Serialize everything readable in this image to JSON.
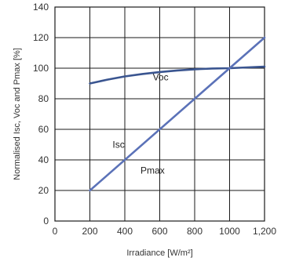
{
  "chart_data": {
    "type": "line",
    "xlabel": "Irradiance [W/m²]",
    "ylabel": "Normalised Isc, Voc and Pmax [%]",
    "xlim": [
      0,
      1200
    ],
    "ylim": [
      0,
      140
    ],
    "x_ticks": [
      0,
      200,
      400,
      600,
      800,
      1000,
      1200
    ],
    "x_tick_labels": [
      "0",
      "200",
      "400",
      "600",
      "800",
      "1000",
      "1,200"
    ],
    "y_ticks": [
      0,
      20,
      40,
      60,
      80,
      100,
      120,
      140
    ],
    "y_tick_labels": [
      "0",
      "20",
      "40",
      "60",
      "80",
      "100",
      "120",
      "140"
    ],
    "grid": true,
    "series": [
      {
        "name": "Voc",
        "x": [
          200,
          300,
          400,
          500,
          600,
          700,
          800,
          900,
          1000,
          1100,
          1200
        ],
        "y": [
          90,
          92.5,
          94.6,
          96.2,
          97.5,
          98.5,
          99.3,
          99.8,
          100,
          100.5,
          101
        ],
        "color": "#3a5590"
      },
      {
        "name": "Isc",
        "x": [
          200,
          1200
        ],
        "y": [
          20,
          120
        ],
        "color": "#5b72b8"
      }
    ],
    "annotations": [
      {
        "text": "Voc",
        "x": 560,
        "y": 92
      },
      {
        "text": "Isc",
        "x": 330,
        "y": 48
      },
      {
        "text": "Pmax",
        "x": 490,
        "y": 31
      }
    ]
  }
}
